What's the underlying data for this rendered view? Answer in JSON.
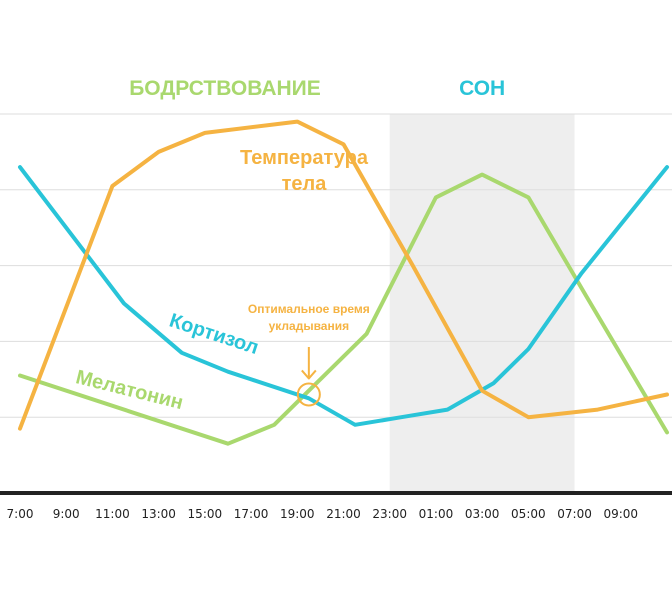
{
  "chart_data": {
    "type": "line",
    "phases": [
      {
        "label": "БОДРСТВОВАНИЕ",
        "color": "#a9d86e"
      },
      {
        "label": "СОН",
        "color": "#29c4d8",
        "x_range": [
          "23:00",
          "07:00"
        ],
        "shade": "#eeeeee"
      }
    ],
    "categories": [
      "7:00",
      "9:00",
      "11:00",
      "13:00",
      "15:00",
      "17:00",
      "19:00",
      "21:00",
      "23:00",
      "01:00",
      "03:00",
      "05:00",
      "07:00",
      "09:00"
    ],
    "series": [
      {
        "name": "Температура тела",
        "name_lines": [
          "Температура",
          "тела"
        ],
        "color": "#f5b342",
        "x": [
          0,
          4,
          6,
          8,
          12,
          14,
          17,
          20,
          22,
          25,
          28
        ],
        "y": [
          17,
          81,
          90,
          95,
          98,
          92,
          60,
          27,
          20,
          22,
          26
        ]
      },
      {
        "name": "Кортизол",
        "color": "#29c4d8",
        "x": [
          0,
          4.5,
          7,
          9,
          12.5,
          14.5,
          16.5,
          18.5,
          20.5,
          22,
          24.3,
          28
        ],
        "y": [
          86,
          50,
          37,
          32,
          25,
          18,
          20,
          22,
          29,
          38,
          58,
          86
        ]
      },
      {
        "name": "Мелатонин",
        "color": "#a9d86e",
        "x": [
          0,
          9,
          11,
          12.5,
          15,
          18,
          20,
          22,
          24.5,
          28
        ],
        "y": [
          31,
          13,
          18,
          27,
          42,
          78,
          84,
          78,
          52,
          16
        ]
      }
    ],
    "annotation": {
      "text_lines": [
        "Оптимальное время",
        "укладывания"
      ],
      "color": "#f5b342",
      "x": 12.5,
      "y": 26
    },
    "ylim": [
      0,
      100
    ],
    "xlim": [
      0,
      28
    ],
    "grid": true
  }
}
